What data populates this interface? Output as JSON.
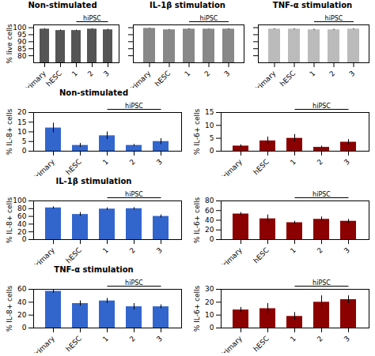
{
  "chart_data": [
    {
      "type": "bar",
      "title": "Non-stimulated",
      "ylabel": "% live cells",
      "categories": [
        "Primary",
        "hESC",
        "1",
        "2",
        "3"
      ],
      "values": [
        99,
        98,
        98,
        99,
        98.5
      ],
      "errors": [
        0.3,
        0.4,
        0.3,
        0.3,
        0.4
      ],
      "color": "#555555",
      "ylim": [
        75,
        102
      ],
      "yticks": [
        80,
        85,
        90,
        95,
        100
      ],
      "annotations": [
        {
          "text": "hiPSC",
          "categories": [
            "1",
            "2",
            "3"
          ]
        }
      ]
    },
    {
      "type": "bar",
      "title": "IL-1β stimulation",
      "categories": [
        "Primary",
        "hESC",
        "1",
        "2",
        "3"
      ],
      "values": [
        99.5,
        98.5,
        99,
        99,
        99
      ],
      "errors": [
        0.2,
        0.3,
        0.3,
        0.2,
        0.3
      ],
      "color": "#888888",
      "ylim": [
        75,
        102
      ],
      "yticks": [
        80,
        85,
        90,
        95,
        100
      ],
      "tick_labels": "x",
      "annotations": [
        {
          "text": "hiPSC",
          "categories": [
            "1",
            "2",
            "3"
          ]
        }
      ]
    },
    {
      "type": "bar",
      "title": "TNF-α stimulation",
      "categories": [
        "Primary",
        "hESC",
        "1",
        "2",
        "3"
      ],
      "values": [
        99,
        99,
        98.5,
        98.5,
        99
      ],
      "errors": [
        0.3,
        0.3,
        0.4,
        0.4,
        0.3
      ],
      "color": "#bbbbbb",
      "ylim": [
        75,
        102
      ],
      "yticks": [
        80,
        85,
        90,
        95,
        100
      ],
      "tick_labels": "x",
      "annotations": [
        {
          "text": "hiPSC",
          "categories": [
            "1",
            "2",
            "3"
          ]
        }
      ]
    },
    {
      "type": "bar",
      "title": "Non-stimulated",
      "ylabel": "% IL-8+ cells",
      "categories": [
        "Primary",
        "hESC",
        "1",
        "2",
        "3"
      ],
      "values": [
        12,
        3,
        8,
        3,
        5
      ],
      "errors": [
        2.5,
        1,
        2,
        0.5,
        1.5
      ],
      "color": "#3366CC",
      "ylim": [
        0,
        20
      ],
      "yticks": [
        0,
        5,
        10,
        15,
        20
      ],
      "annotations": [
        {
          "text": "hiPSC",
          "categories": [
            "1",
            "2",
            "3"
          ]
        }
      ]
    },
    {
      "type": "bar",
      "ylabel": "% IL-6+ cells",
      "categories": [
        "Primary",
        "hESC",
        "1",
        "2",
        "3"
      ],
      "values": [
        2,
        4,
        5,
        1.5,
        3.5
      ],
      "errors": [
        0.5,
        1.5,
        1.5,
        0.5,
        1.0
      ],
      "color": "#8B0000",
      "ylim": [
        0,
        15
      ],
      "yticks": [
        0,
        5,
        10,
        15
      ],
      "annotations": [
        {
          "text": "hiPSC",
          "categories": [
            "1",
            "2",
            "3"
          ]
        }
      ]
    },
    {
      "type": "bar",
      "title": "IL-1β stimulation",
      "ylabel": "% IL-8+ cells",
      "categories": [
        "Primary",
        "hESC",
        "1",
        "2",
        "3"
      ],
      "values": [
        82,
        65,
        79,
        80,
        60
      ],
      "errors": [
        3,
        5,
        3,
        3,
        4
      ],
      "color": "#3366CC",
      "ylim": [
        0,
        100
      ],
      "yticks": [
        0,
        20,
        40,
        60,
        80,
        100
      ],
      "annotations": [
        {
          "text": "hiPSC",
          "categories": [
            "1",
            "2",
            "3"
          ]
        }
      ]
    },
    {
      "type": "bar",
      "ylabel": "% IL-6+ cells",
      "categories": [
        "Primary",
        "hESC",
        "1",
        "2",
        "3"
      ],
      "values": [
        53,
        43,
        35,
        42,
        38
      ],
      "errors": [
        3,
        8,
        3,
        5,
        4
      ],
      "color": "#8B0000",
      "ylim": [
        0,
        80
      ],
      "yticks": [
        0,
        20,
        40,
        60,
        80
      ],
      "annotations": [
        {
          "text": "hiPSC",
          "categories": [
            "1",
            "2",
            "3"
          ]
        }
      ]
    },
    {
      "type": "bar",
      "title": "TNF-α stimulation",
      "ylabel": "% IL-8+ cells",
      "categories": [
        "Primary",
        "hESC",
        "1",
        "2",
        "3"
      ],
      "values": [
        57,
        38,
        42,
        33,
        33
      ],
      "errors": [
        3,
        4,
        4,
        5,
        3
      ],
      "color": "#3366CC",
      "ylim": [
        0,
        60
      ],
      "yticks": [
        0,
        20,
        40,
        60
      ],
      "annotations": [
        {
          "text": "hiPSC",
          "categories": [
            "1",
            "2",
            "3"
          ]
        }
      ]
    },
    {
      "type": "bar",
      "ylabel": "% IL-6+ cells",
      "categories": [
        "Primary",
        "hESC",
        "1",
        "2",
        "3"
      ],
      "values": [
        14,
        15,
        9,
        20,
        22
      ],
      "errors": [
        2,
        4,
        3,
        5,
        3
      ],
      "color": "#8B0000",
      "ylim": [
        0,
        30
      ],
      "yticks": [
        0,
        10,
        20,
        30
      ],
      "annotations": [
        {
          "text": "hiPSC",
          "categories": [
            "1",
            "2",
            "3"
          ]
        }
      ]
    }
  ]
}
